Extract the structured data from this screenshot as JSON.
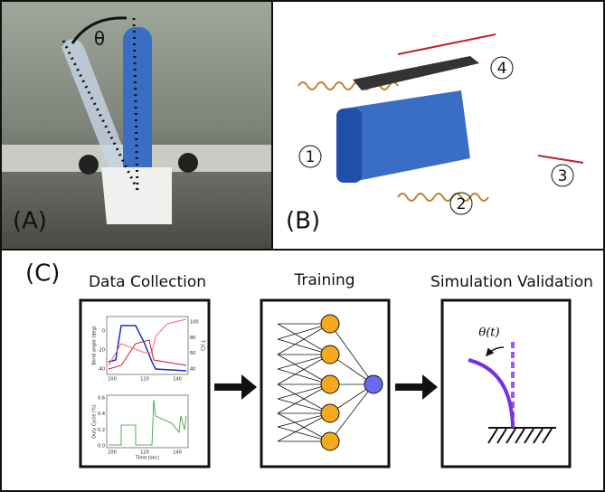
{
  "panel_a": {
    "label": "(A)",
    "angle": "θ"
  },
  "panel_b": {
    "label": "(B)",
    "callouts": [
      "1",
      "2",
      "3",
      "4"
    ]
  },
  "panel_c": {
    "label": "(C)",
    "steps": [
      {
        "title": "Data Collection"
      },
      {
        "title": "Training"
      },
      {
        "title": "Simulation Validation",
        "annotation": "θ(t)"
      }
    ],
    "mini_plot": {
      "top": {
        "ylabel": "Bend angle (deg)",
        "y2label": "T (C)",
        "yticks": [
          "0",
          "-20",
          "-40"
        ],
        "y2ticks": [
          "100",
          "80",
          "60",
          "40"
        ],
        "xticks": [
          "100",
          "120",
          "140"
        ]
      },
      "bottom": {
        "ylabel": "Duty Cycle (%)",
        "yticks": [
          "0.6",
          "0.4",
          "0.2",
          "0.0"
        ],
        "xticks": [
          "100",
          "120",
          "140"
        ],
        "xlabel": "Time (sec)"
      }
    }
  }
}
